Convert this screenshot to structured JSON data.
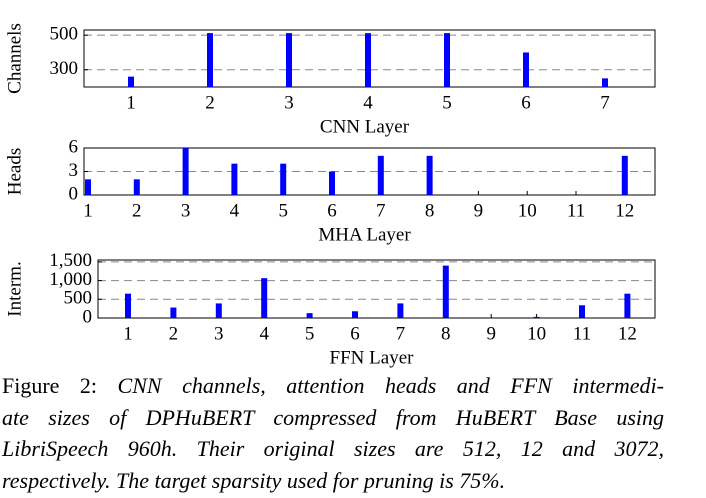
{
  "chart_data": [
    {
      "type": "bar",
      "x_label": "CNN Layer",
      "y_label": "Channels",
      "categories": [
        "1",
        "2",
        "3",
        "4",
        "5",
        "6",
        "7"
      ],
      "values": [
        260,
        512,
        512,
        512,
        512,
        400,
        250
      ],
      "color": "#0000ff",
      "ylim": [
        200,
        530
      ],
      "yticks": [
        300,
        500
      ],
      "grid": true
    },
    {
      "type": "bar",
      "x_label": "MHA Layer",
      "y_label": "Heads",
      "categories": [
        "1",
        "2",
        "3",
        "4",
        "5",
        "6",
        "7",
        "8",
        "9",
        "10",
        "11",
        "12"
      ],
      "values": [
        2,
        2,
        6,
        4,
        4,
        3,
        5,
        5,
        0,
        0,
        0,
        5
      ],
      "color": "#0000ff",
      "ylim": [
        0,
        6
      ],
      "yticks": [
        0,
        3,
        6
      ],
      "grid": true
    },
    {
      "type": "bar",
      "x_label": "FFN Layer",
      "y_label": "Interm.",
      "categories": [
        "1",
        "2",
        "3",
        "4",
        "5",
        "6",
        "7",
        "8",
        "9",
        "10",
        "11",
        "12"
      ],
      "values": [
        650,
        280,
        390,
        1065,
        130,
        180,
        390,
        1400,
        0,
        30,
        340,
        650
      ],
      "color": "#0000ff",
      "ylim": [
        0,
        1550
      ],
      "yticks": [
        0,
        500,
        {
          "value": 1000,
          "label": "1,000"
        },
        {
          "value": 1500,
          "label": "1,500"
        }
      ],
      "grid": true
    }
  ],
  "caption": {
    "label": "Figure 2:",
    "lines": [
      "CNN channels, attention heads and FFN intermedi-",
      "ate sizes of DPHuBERT compressed from HuBERT Base using",
      "LibriSpeech 960h. Their original sizes are 512, 12 and 3072,",
      "respectively. The target sparsity used for pruning is 75%."
    ]
  }
}
